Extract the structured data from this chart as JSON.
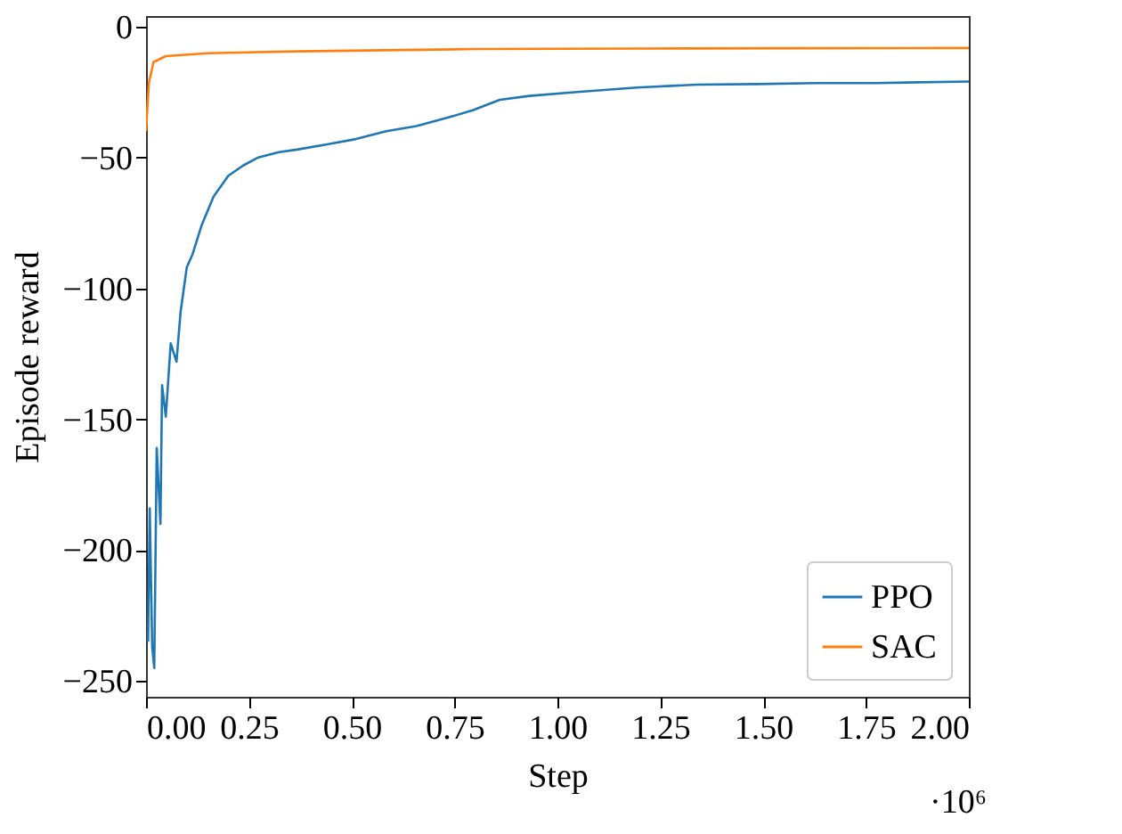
{
  "chart_data": {
    "type": "line",
    "xlabel": "Step",
    "ylabel": "Episode reward",
    "annotations": [
      "·10⁶"
    ],
    "xlim": [
      0,
      2
    ],
    "ylim": [
      -256,
      4
    ],
    "xticks": [
      {
        "value": 0,
        "label": "0.00"
      },
      {
        "value": 0.25,
        "label": "0.25"
      },
      {
        "value": 0.5,
        "label": "0.50"
      },
      {
        "value": 0.75,
        "label": "0.75"
      },
      {
        "value": 1,
        "label": "1.00"
      },
      {
        "value": 1.25,
        "label": "1.25"
      },
      {
        "value": 1.5,
        "label": "1.50"
      },
      {
        "value": 1.75,
        "label": "1.75"
      },
      {
        "value": 2,
        "label": "2.00"
      }
    ],
    "yticks": [
      0,
      {
        "value": -50,
        "label": "−50"
      },
      {
        "value": -100,
        "label": "−100"
      },
      {
        "value": -150,
        "label": "−150"
      },
      {
        "value": -200,
        "label": "−200"
      },
      {
        "value": -250,
        "label": "−250"
      }
    ],
    "grid": false,
    "legend": "bottom right",
    "marker": "none",
    "line_style": "solid",
    "series": [
      {
        "name": "PPO",
        "color": "#1f77b4",
        "x": [
          0.005,
          0.009,
          0.015,
          0.02,
          0.026,
          0.035,
          0.039,
          0.048,
          0.06,
          0.074,
          0.084,
          0.099,
          0.113,
          0.135,
          0.164,
          0.2,
          0.237,
          0.273,
          0.323,
          0.367,
          0.44,
          0.51,
          0.584,
          0.657,
          0.729,
          0.794,
          0.86,
          0.932,
          1.048,
          1.193,
          1.338,
          1.483,
          1.628,
          1.77,
          2.0
        ],
        "values": [
          -235,
          -184,
          -237,
          -245,
          -161,
          -190,
          -137,
          -149,
          -121,
          -128,
          -109,
          -92,
          -87,
          -76,
          -65,
          -57,
          -53,
          -50,
          -48,
          -47,
          -45,
          -43,
          -40,
          -38,
          -35,
          -32,
          -28,
          -26.5,
          -25,
          -23.3,
          -22.2,
          -22,
          -21.6,
          -21.6,
          -21
        ]
      },
      {
        "name": "SAC",
        "color": "#ff7f0e",
        "x": [
          0,
          0.007,
          0.018,
          0.048,
          0.15,
          0.37,
          0.8,
          1.2,
          1.6,
          2.0
        ],
        "values": [
          -40,
          -21.5,
          -13.6,
          -11.3,
          -10.2,
          -9.5,
          -8.6,
          -8.4,
          -8.3,
          -8.2
        ]
      }
    ]
  }
}
